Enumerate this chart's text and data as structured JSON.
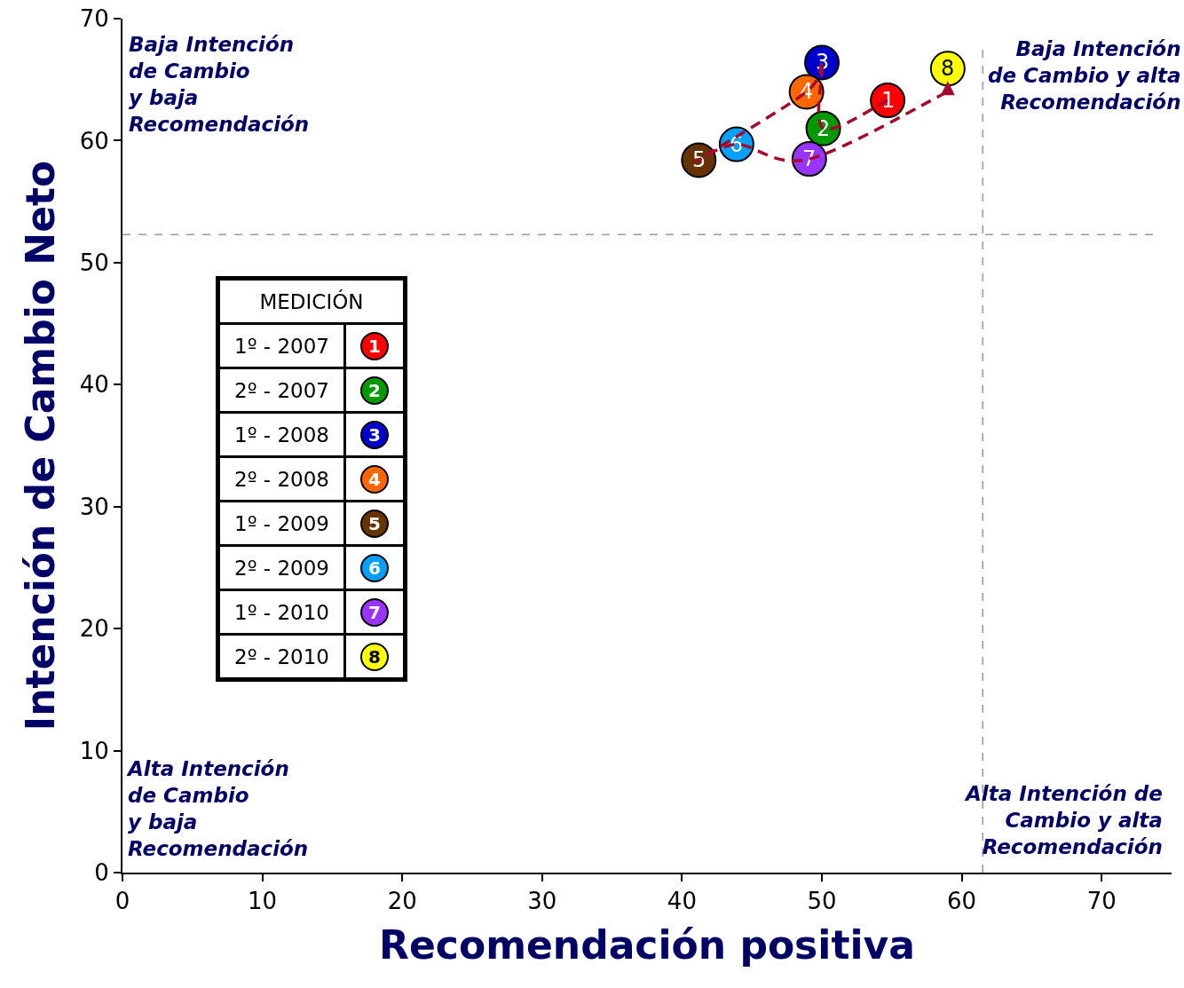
{
  "chart_data": {
    "type": "scatter",
    "xlabel": "Recomendación positiva",
    "ylabel": "Intención de Cambio Neto",
    "xlim": [
      0,
      75
    ],
    "ylim": [
      0,
      70
    ],
    "xticks": [
      0,
      10,
      20,
      30,
      40,
      50,
      60,
      70
    ],
    "yticks": [
      0,
      10,
      20,
      30,
      40,
      50,
      60,
      70
    ],
    "grid": false,
    "legend": "left",
    "legend_title": "MEDICIÓN",
    "marker": "circle",
    "series": [
      {
        "name": "1º - 2007",
        "color": "#ff0000",
        "x": [
          54.7
        ],
        "values": [
          63.3
        ]
      },
      {
        "name": "2º - 2007",
        "color": "#009900",
        "x": [
          50.1
        ],
        "values": [
          61.0
        ]
      },
      {
        "name": "1º - 2008",
        "color": "#0000cc",
        "x": [
          50.0
        ],
        "values": [
          66.4
        ]
      },
      {
        "name": "2º - 2008",
        "color": "#ff6600",
        "x": [
          48.9
        ],
        "values": [
          64.0
        ]
      },
      {
        "name": "1º - 2009",
        "color": "#663300",
        "x": [
          41.2
        ],
        "values": [
          58.4
        ]
      },
      {
        "name": "2º - 2009",
        "color": "#00a0ff",
        "x": [
          43.9
        ],
        "values": [
          59.7
        ]
      },
      {
        "name": "1º - 2010",
        "color": "#9933ff",
        "x": [
          49.1
        ],
        "values": [
          58.5
        ]
      },
      {
        "name": "2º - 2010",
        "color": "#ffff00",
        "x": [
          59.0
        ],
        "values": [
          65.9
        ]
      }
    ],
    "ref_lines": [
      {
        "axis": "y",
        "value": 52.3,
        "color": "#999999",
        "line_style": "dashed"
      },
      {
        "axis": "x",
        "value": 61.5,
        "color": "#999999",
        "line_style": "dashed"
      }
    ],
    "annotations": [
      "Baja Intención\nde Cambio\ny baja\nRecomendación",
      "Baja Intención\nde Cambio y alta\nRecomendación",
      "Alta Intención\nde Cambio\ny baja\nRecomendación",
      "Alta Intención de\nCambio y alta\nRecomendación",
      {
        "text": "1",
        "x": 54.7,
        "y": 63.3
      },
      {
        "text": "2",
        "x": 50.1,
        "y": 61.0
      },
      {
        "text": "3",
        "x": 50.0,
        "y": 66.4
      },
      {
        "text": "4",
        "x": 48.9,
        "y": 64.0
      },
      {
        "text": "5",
        "x": 41.2,
        "y": 58.4
      },
      {
        "text": "6",
        "x": 43.9,
        "y": 59.7
      },
      {
        "text": "7",
        "x": 49.1,
        "y": 58.5
      },
      {
        "text": "8",
        "x": 59.0,
        "y": 65.9
      }
    ]
  }
}
